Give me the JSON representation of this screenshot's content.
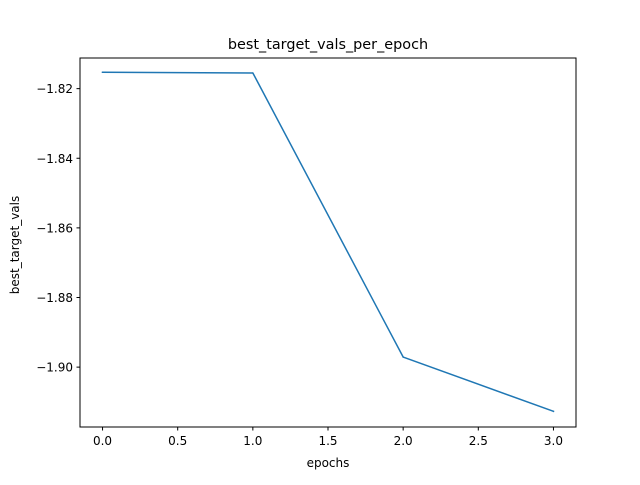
{
  "chart_data": {
    "type": "line",
    "title": "best_target_vals_per_epoch",
    "xlabel": "epochs",
    "ylabel": "best_target_vals",
    "xlim": [
      -0.15,
      3.15
    ],
    "ylim": [
      -1.9172,
      -1.8112
    ],
    "xticks": [
      0.0,
      0.5,
      1.0,
      1.5,
      2.0,
      2.5,
      3.0
    ],
    "xtick_labels": [
      "0.0",
      "0.5",
      "1.0",
      "1.5",
      "2.0",
      "2.5",
      "3.0"
    ],
    "yticks": [
      -1.82,
      -1.84,
      -1.86,
      -1.88,
      -1.9
    ],
    "ytick_labels": [
      "−1.82",
      "−1.84",
      "−1.86",
      "−1.88",
      "−1.90"
    ],
    "grid": false,
    "legend": "none",
    "series": [
      {
        "x": [
          0,
          1,
          2,
          3
        ],
        "values": [
          -1.8153,
          -1.8155,
          -1.8971,
          -1.9127
        ],
        "color": "#1f77b4"
      }
    ]
  }
}
